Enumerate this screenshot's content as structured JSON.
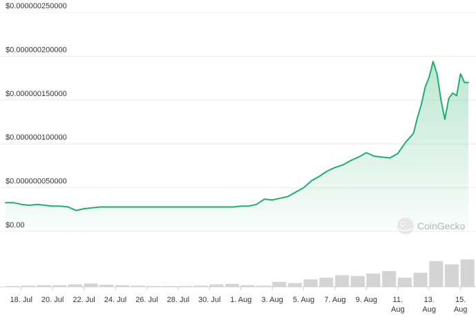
{
  "chart_data": {
    "type": "area",
    "y_ticks": [
      {
        "value": 0,
        "label": "$0.00"
      },
      {
        "value": 5e-08,
        "label": "$0.000000050000"
      },
      {
        "value": 1e-07,
        "label": "$0.000000100000"
      },
      {
        "value": 1.5e-07,
        "label": "$0.000000150000"
      },
      {
        "value": 2e-07,
        "label": "$0.000000200000"
      },
      {
        "value": 2.5e-07,
        "label": "$0.000000250000"
      }
    ],
    "ylim": [
      0,
      2.5e-07
    ],
    "x_range": [
      "2024-07-17",
      "2024-08-15T12:00"
    ],
    "x_ticks": [
      {
        "date": "2024-07-18",
        "label": [
          "18. Jul"
        ]
      },
      {
        "date": "2024-07-20",
        "label": [
          "20. Jul"
        ]
      },
      {
        "date": "2024-07-22",
        "label": [
          "22. Jul"
        ]
      },
      {
        "date": "2024-07-24",
        "label": [
          "24. Jul"
        ]
      },
      {
        "date": "2024-07-26",
        "label": [
          "26. Jul"
        ]
      },
      {
        "date": "2024-07-28",
        "label": [
          "28. Jul"
        ]
      },
      {
        "date": "2024-07-30",
        "label": [
          "30. Jul"
        ]
      },
      {
        "date": "2024-08-01",
        "label": [
          "1. Aug"
        ]
      },
      {
        "date": "2024-08-03",
        "label": [
          "3. Aug"
        ]
      },
      {
        "date": "2024-08-05",
        "label": [
          "5. Aug"
        ]
      },
      {
        "date": "2024-08-07",
        "label": [
          "7. Aug"
        ]
      },
      {
        "date": "2024-08-09",
        "label": [
          "9. Aug"
        ]
      },
      {
        "date": "2024-08-11",
        "label": [
          "11.",
          "Aug"
        ]
      },
      {
        "date": "2024-08-13",
        "label": [
          "13.",
          "Aug"
        ]
      },
      {
        "date": "2024-08-15",
        "label": [
          "15.",
          "Aug"
        ]
      }
    ],
    "grid": true,
    "line_color": "#1fae6a",
    "fill_color": "#1fae6a",
    "volume_color": "#c9c9c9",
    "price_series": {
      "x": [
        "2024-07-17",
        "2024-07-17T12:00",
        "2024-07-18",
        "2024-07-18T12:00",
        "2024-07-19",
        "2024-07-19T12:00",
        "2024-07-20",
        "2024-07-20T12:00",
        "2024-07-21",
        "2024-07-21T12:00",
        "2024-07-22",
        "2024-07-22T12:00",
        "2024-07-23",
        "2024-07-23T12:00",
        "2024-07-24",
        "2024-07-24T12:00",
        "2024-07-25",
        "2024-07-25T12:00",
        "2024-07-26",
        "2024-07-26T12:00",
        "2024-07-27",
        "2024-07-27T12:00",
        "2024-07-28",
        "2024-07-28T12:00",
        "2024-07-29",
        "2024-07-29T12:00",
        "2024-07-30",
        "2024-07-30T12:00",
        "2024-07-31",
        "2024-07-31T12:00",
        "2024-08-01",
        "2024-08-01T12:00",
        "2024-08-02",
        "2024-08-02T12:00",
        "2024-08-03",
        "2024-08-03T12:00",
        "2024-08-04",
        "2024-08-04T12:00",
        "2024-08-05",
        "2024-08-05T12:00",
        "2024-08-06",
        "2024-08-06T12:00",
        "2024-08-07",
        "2024-08-07T12:00",
        "2024-08-08",
        "2024-08-08T12:00",
        "2024-08-09",
        "2024-08-09T12:00",
        "2024-08-10",
        "2024-08-10T12:00",
        "2024-08-11",
        "2024-08-11T12:00",
        "2024-08-12",
        "2024-08-12T06:00",
        "2024-08-12T12:00",
        "2024-08-12T18:00",
        "2024-08-13",
        "2024-08-13T06:00",
        "2024-08-13T12:00",
        "2024-08-13T18:00",
        "2024-08-14",
        "2024-08-14T06:00",
        "2024-08-14T12:00",
        "2024-08-14T18:00",
        "2024-08-15",
        "2024-08-15T06:00",
        "2024-08-15T12:00"
      ],
      "values": [
        3.3e-08,
        3.3e-08,
        3.1e-08,
        3e-08,
        3.1e-08,
        3e-08,
        2.9e-08,
        2.9e-08,
        2.8e-08,
        2.4e-08,
        2.6e-08,
        2.7e-08,
        2.8e-08,
        2.8e-08,
        2.8e-08,
        2.8e-08,
        2.8e-08,
        2.8e-08,
        2.8e-08,
        2.8e-08,
        2.8e-08,
        2.8e-08,
        2.8e-08,
        2.8e-08,
        2.8e-08,
        2.8e-08,
        2.8e-08,
        2.8e-08,
        2.8e-08,
        2.8e-08,
        2.9e-08,
        2.9e-08,
        3.1e-08,
        3.7e-08,
        3.6e-08,
        3.8e-08,
        4e-08,
        4.5e-08,
        5e-08,
        5.8e-08,
        6.3e-08,
        6.9e-08,
        7.3e-08,
        7.6e-08,
        8.1e-08,
        8.5e-08,
        9e-08,
        8.6e-08,
        8.5e-08,
        8.4e-08,
        8.9e-08,
        1.02e-07,
        1.12e-07,
        1.3e-07,
        1.45e-07,
        1.65e-07,
        1.76e-07,
        1.94e-07,
        1.8e-07,
        1.5e-07,
        1.28e-07,
        1.52e-07,
        1.58e-07,
        1.55e-07,
        1.8e-07,
        1.7e-07,
        1.7e-07
      ]
    },
    "volume_series": {
      "x": [
        "2024-07-17",
        "2024-07-18",
        "2024-07-19",
        "2024-07-20",
        "2024-07-21",
        "2024-07-22",
        "2024-07-23",
        "2024-07-24",
        "2024-07-25",
        "2024-07-26",
        "2024-07-27",
        "2024-07-28",
        "2024-07-29",
        "2024-07-30",
        "2024-07-31",
        "2024-08-01",
        "2024-08-02",
        "2024-08-03",
        "2024-08-04",
        "2024-08-05",
        "2024-08-06",
        "2024-08-07",
        "2024-08-08",
        "2024-08-09",
        "2024-08-10",
        "2024-08-11",
        "2024-08-12",
        "2024-08-13",
        "2024-08-14",
        "2024-08-15"
      ],
      "values": [
        0.02,
        0.03,
        0.04,
        0.04,
        0.06,
        0.08,
        0.05,
        0.04,
        0.03,
        0.02,
        0.02,
        0.02,
        0.03,
        0.06,
        0.07,
        0.04,
        0.03,
        0.12,
        0.09,
        0.18,
        0.22,
        0.28,
        0.26,
        0.32,
        0.38,
        0.22,
        0.34,
        0.62,
        0.54,
        0.66
      ]
    }
  },
  "watermark": {
    "text": "CoinGecko",
    "icon": "coingecko-logo-icon"
  }
}
